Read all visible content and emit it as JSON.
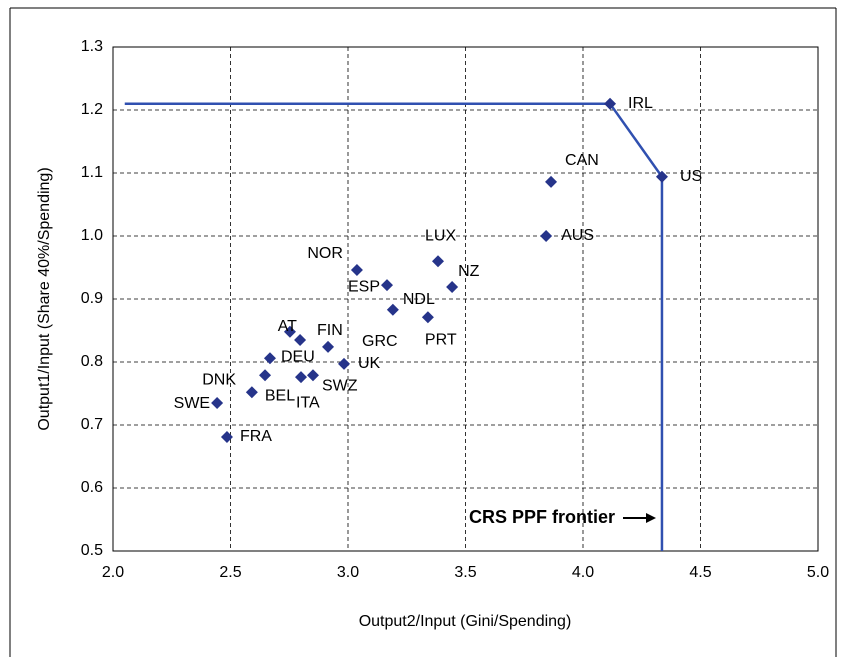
{
  "chart_data": {
    "type": "scatter",
    "x_label": "Output2/Input (Gini/Spending)",
    "y_label": "Output1/Input (Share 40%/Spending)",
    "xlim": [
      2.0,
      5.0
    ],
    "ylim": [
      0.5,
      1.3
    ],
    "xticks": [
      {
        "value": 2.0,
        "label": "2.0"
      },
      2.5,
      {
        "value": 3.0,
        "label": "3.0"
      },
      3.5,
      {
        "value": 4.0,
        "label": "4.0"
      },
      4.5,
      {
        "value": 5.0,
        "label": "5.0"
      }
    ],
    "yticks": [
      0.5,
      0.6,
      0.7,
      0.8,
      0.9,
      {
        "value": 1.0,
        "label": "1.0"
      },
      1.1,
      1.2,
      1.3
    ],
    "grid": true,
    "color": "#26348a",
    "labels": [
      "IRL",
      "US",
      "CAN",
      "AUS",
      "LUX",
      "NZ",
      "NOR",
      "ESP",
      "NDL",
      "PRT",
      "GRC",
      "AT",
      "FIN",
      "DEU",
      "UK",
      "DNK",
      "SWZ",
      "BEL",
      "ITA",
      "SWE",
      "FRA"
    ],
    "x": [
      4.115,
      4.336,
      3.864,
      3.843,
      3.383,
      3.443,
      3.038,
      3.166,
      3.191,
      3.34,
      2.796,
      2.753,
      2.915,
      2.668,
      2.983,
      2.647,
      2.851,
      2.591,
      2.8,
      2.443,
      2.485
    ],
    "y": [
      1.21,
      1.094,
      1.086,
      1.0,
      0.96,
      0.919,
      0.946,
      0.922,
      0.883,
      0.871,
      0.835,
      0.848,
      0.824,
      0.806,
      0.797,
      0.779,
      0.779,
      0.752,
      0.776,
      0.735,
      0.681
    ],
    "frontier": {
      "name": "CRS PPF frontier",
      "color": "#3050b0",
      "x": [
        2.05,
        4.115,
        4.336,
        4.336
      ],
      "y": [
        1.21,
        1.21,
        1.094,
        0.5
      ]
    }
  }
}
